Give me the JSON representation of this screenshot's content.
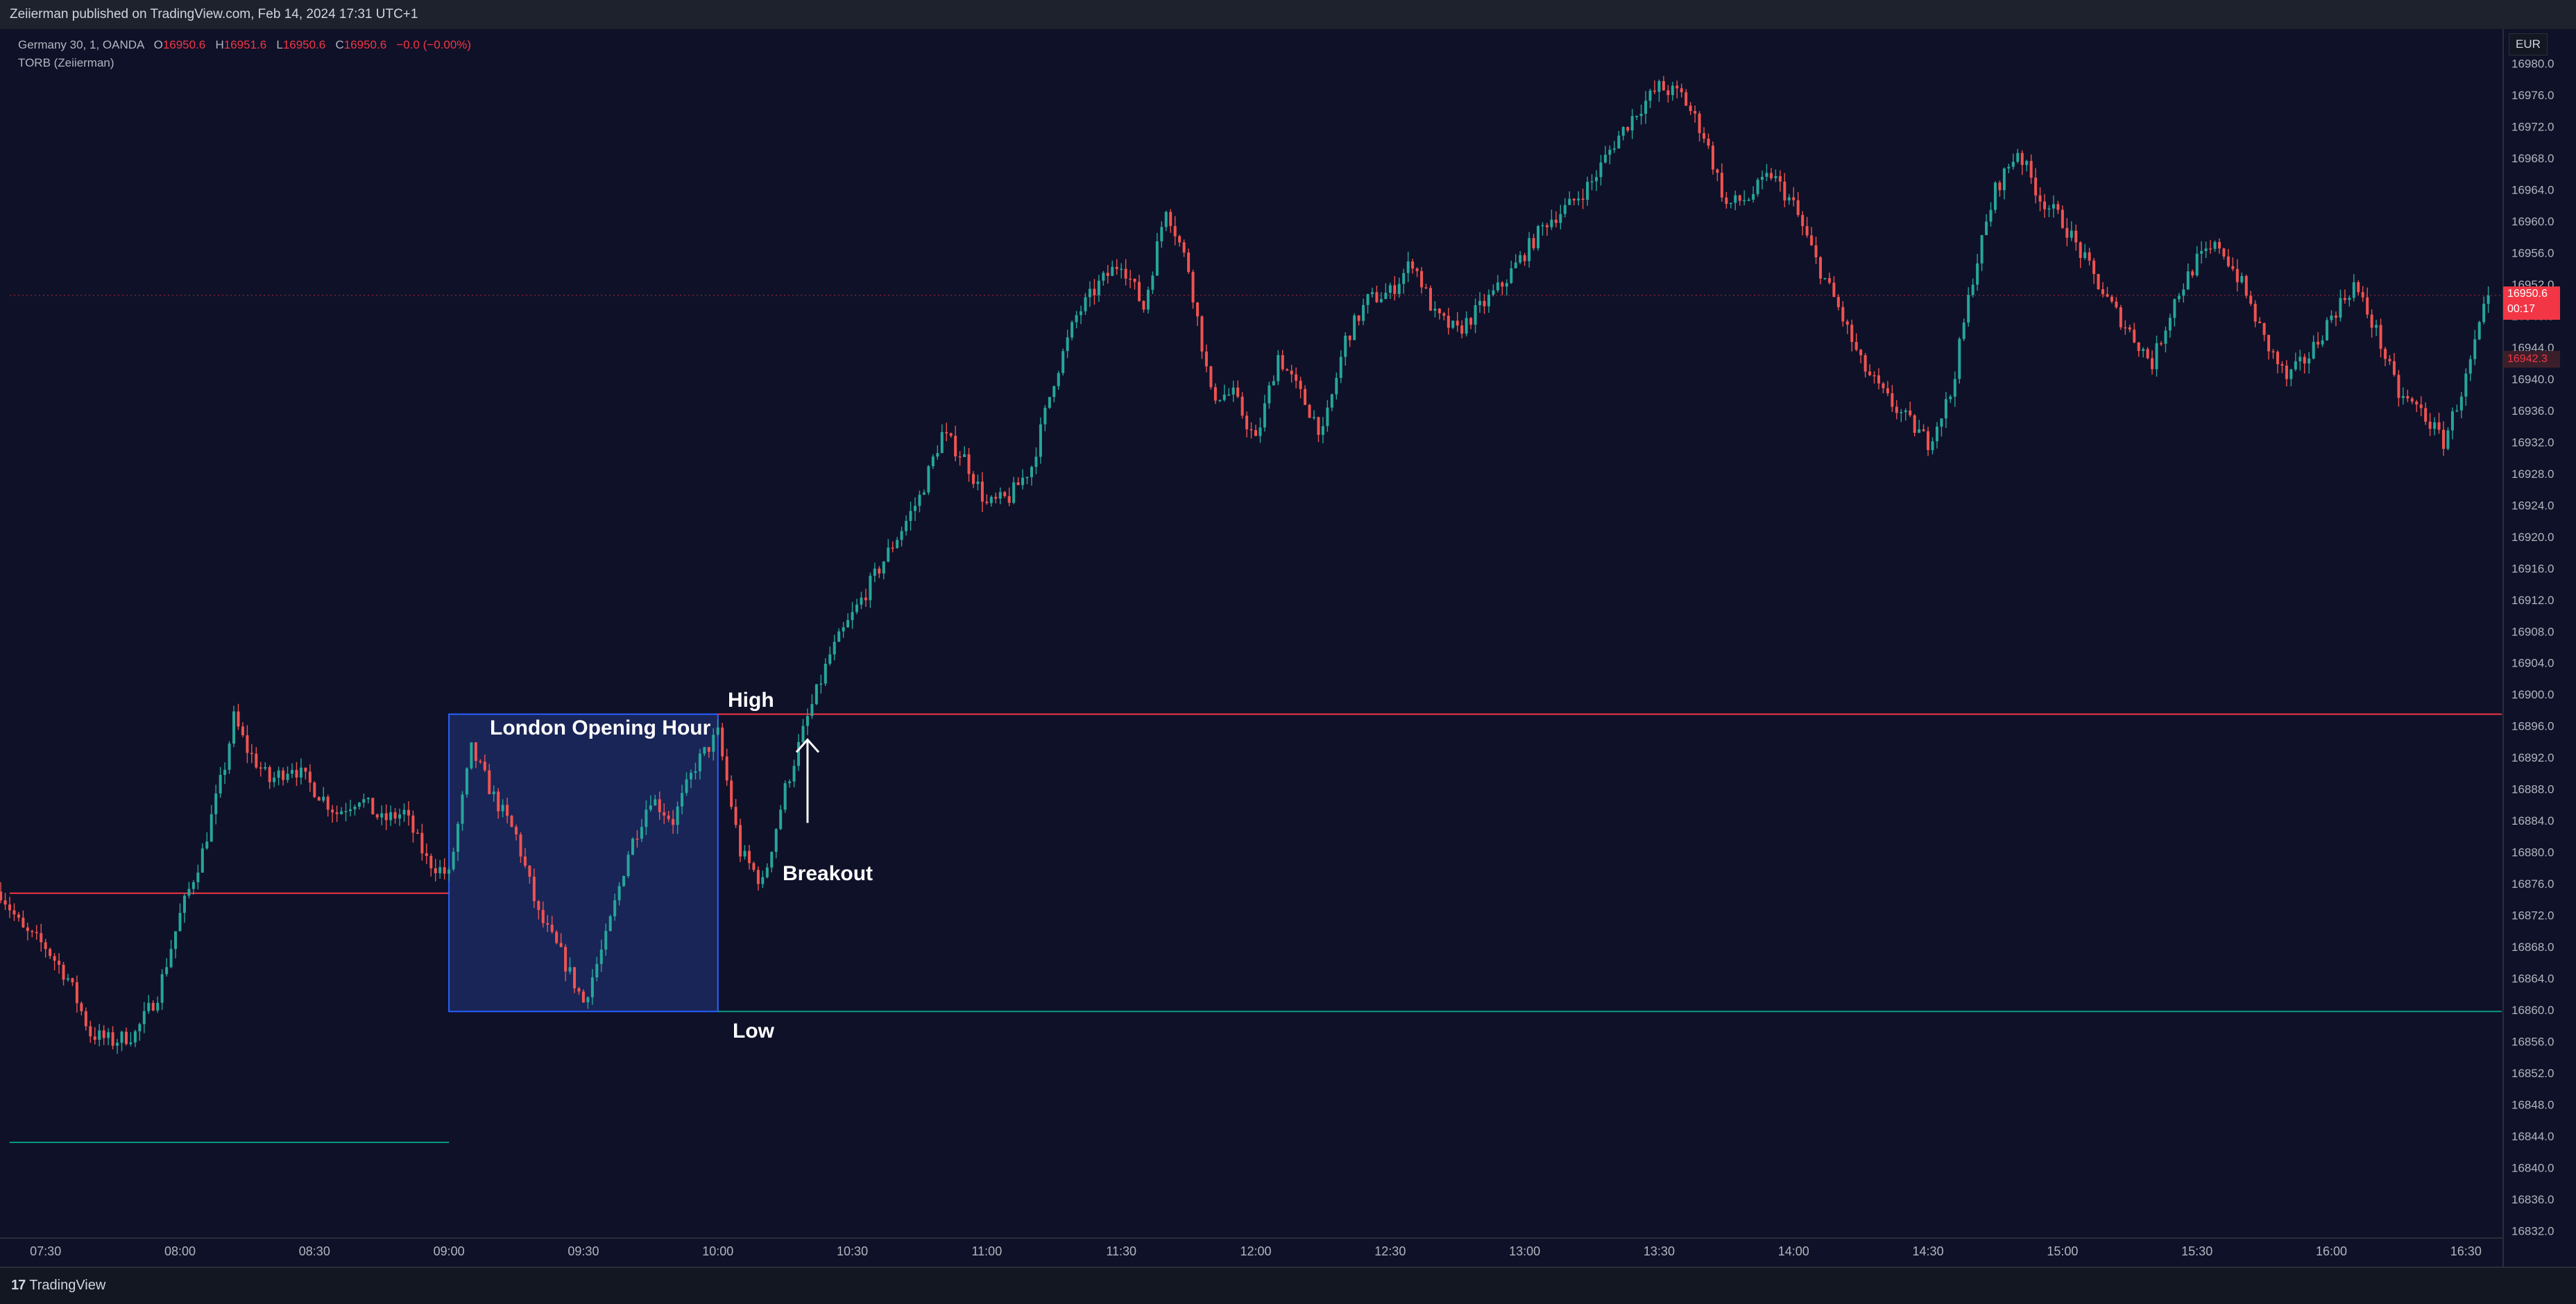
{
  "header": {
    "published": "Zeiierman published on TradingView.com, Feb 14, 2024 17:31 UTC+1"
  },
  "legend": {
    "symbol": "Germany 30, 1, OANDA",
    "o_label": "O",
    "o_val": "16950.6",
    "h_label": "H",
    "h_val": "16951.6",
    "l_label": "L",
    "l_val": "16950.6",
    "c_label": "C",
    "c_val": "16950.6",
    "change": "−0.0 (−0.00%)",
    "indicator": "TORB (Zeiierman)"
  },
  "currency": "EUR",
  "price_tag": {
    "price": "16950.6",
    "countdown": "00:17",
    "secondary": "16942.3"
  },
  "annotations": {
    "box_label": "London Opening Hour",
    "high": "High",
    "low": "Low",
    "breakout": "Breakout"
  },
  "footer": {
    "logo_text": "TradingView",
    "logo_mark": "17"
  },
  "colors": {
    "background": "#131722",
    "up": "#26a69a",
    "down": "#ef5350",
    "high_line": "#f23645",
    "low_line": "#089981",
    "box_fill": "#1c2a63",
    "box_border": "#2962ff"
  },
  "chart_data": {
    "type": "candlestick",
    "title": "",
    "xlabel": "",
    "ylabel": "",
    "x_ticks": [
      "07:30",
      "08:00",
      "08:30",
      "09:00",
      "09:30",
      "10:00",
      "10:30",
      "11:00",
      "11:30",
      "12:00",
      "12:30",
      "13:00",
      "13:30",
      "14:00",
      "14:30",
      "15:00",
      "15:30",
      "16:00",
      "16:30"
    ],
    "y_ticks": [
      "16980.0",
      "16976.0",
      "16972.0",
      "16968.0",
      "16964.0",
      "16960.0",
      "16956.0",
      "16952.0",
      "16948.0",
      "16944.0",
      "16940.0",
      "16936.0",
      "16932.0",
      "16928.0",
      "16924.0",
      "16920.0",
      "16916.0",
      "16912.0",
      "16908.0",
      "16904.0",
      "16900.0",
      "16896.0",
      "16892.0",
      "16888.0",
      "16884.0",
      "16880.0",
      "16876.0",
      "16872.0",
      "16868.0",
      "16864.0",
      "16860.0",
      "16856.0",
      "16852.0",
      "16848.0",
      "16844.0",
      "16840.0",
      "16836.0",
      "16832.0"
    ],
    "ylim": [
      16831.5,
      16980.5
    ],
    "x_range": [
      "07:22",
      "16:38"
    ],
    "opening_range": {
      "label": "London Opening Hour",
      "start": "09:00",
      "end": "10:00",
      "high": 16897.5,
      "low": 16859.8
    },
    "previous_range_lines": {
      "high": 16874.8,
      "low": 16843.2,
      "end": "09:00"
    },
    "breakout": {
      "time": "10:20",
      "price": 16896.2,
      "direction": "up"
    },
    "last_price": 16950.6,
    "series": [
      {
        "name": "price path (approx. close)",
        "points": [
          [
            "07:20",
            16875
          ],
          [
            "07:25",
            16870
          ],
          [
            "07:30",
            16868
          ],
          [
            "07:35",
            16864
          ],
          [
            "07:40",
            16857
          ],
          [
            "07:45",
            16856
          ],
          [
            "07:50",
            16857
          ],
          [
            "07:55",
            16862
          ],
          [
            "08:00",
            16872
          ],
          [
            "08:05",
            16880
          ],
          [
            "08:10",
            16891
          ],
          [
            "08:12",
            16897
          ],
          [
            "08:15",
            16893
          ],
          [
            "08:20",
            16889
          ],
          [
            "08:25",
            16891
          ],
          [
            "08:30",
            16888
          ],
          [
            "08:35",
            16885
          ],
          [
            "08:40",
            16887
          ],
          [
            "08:45",
            16884
          ],
          [
            "08:50",
            16885
          ],
          [
            "08:55",
            16879
          ],
          [
            "09:00",
            16877
          ],
          [
            "09:05",
            16893
          ],
          [
            "09:10",
            16887
          ],
          [
            "09:15",
            16882
          ],
          [
            "09:20",
            16872
          ],
          [
            "09:25",
            16867
          ],
          [
            "09:30",
            16861
          ],
          [
            "09:35",
            16869
          ],
          [
            "09:40",
            16880
          ],
          [
            "09:45",
            16887
          ],
          [
            "09:50",
            16884
          ],
          [
            "09:55",
            16891
          ],
          [
            "10:00",
            16895
          ],
          [
            "10:05",
            16880
          ],
          [
            "10:10",
            16876
          ],
          [
            "10:15",
            16888
          ],
          [
            "10:20",
            16897
          ],
          [
            "10:25",
            16905
          ],
          [
            "10:30",
            16910
          ],
          [
            "10:35",
            16915
          ],
          [
            "10:40",
            16920
          ],
          [
            "10:45",
            16925
          ],
          [
            "10:50",
            16933
          ],
          [
            "10:55",
            16930
          ],
          [
            "11:00",
            16924
          ],
          [
            "11:05",
            16925
          ],
          [
            "11:10",
            16929
          ],
          [
            "11:15",
            16940
          ],
          [
            "11:20",
            16948
          ],
          [
            "11:25",
            16952
          ],
          [
            "11:30",
            16955
          ],
          [
            "11:35",
            16949
          ],
          [
            "11:40",
            16962
          ],
          [
            "11:45",
            16954
          ],
          [
            "11:50",
            16938
          ],
          [
            "11:55",
            16938
          ],
          [
            "12:00",
            16932
          ],
          [
            "12:05",
            16943
          ],
          [
            "12:10",
            16938
          ],
          [
            "12:15",
            16933
          ],
          [
            "12:20",
            16945
          ],
          [
            "12:25",
            16950
          ],
          [
            "12:30",
            16951
          ],
          [
            "12:35",
            16955
          ],
          [
            "12:40",
            16948
          ],
          [
            "12:45",
            16946
          ],
          [
            "12:50",
            16949
          ],
          [
            "12:55",
            16952
          ],
          [
            "13:00",
            16956
          ],
          [
            "13:05",
            16960
          ],
          [
            "13:10",
            16962
          ],
          [
            "13:15",
            16965
          ],
          [
            "13:20",
            16970
          ],
          [
            "13:25",
            16974
          ],
          [
            "13:30",
            16977
          ],
          [
            "13:35",
            16976
          ],
          [
            "13:40",
            16971
          ],
          [
            "13:45",
            16962
          ],
          [
            "13:50",
            16963
          ],
          [
            "13:55",
            16966
          ],
          [
            "14:00",
            16962
          ],
          [
            "14:05",
            16955
          ],
          [
            "14:10",
            16949
          ],
          [
            "14:15",
            16942
          ],
          [
            "14:20",
            16938
          ],
          [
            "14:25",
            16935
          ],
          [
            "14:30",
            16932
          ],
          [
            "14:35",
            16938
          ],
          [
            "14:40",
            16953
          ],
          [
            "14:45",
            16964
          ],
          [
            "14:50",
            16969
          ],
          [
            "14:55",
            16963
          ],
          [
            "15:00",
            16960
          ],
          [
            "15:05",
            16955
          ],
          [
            "15:10",
            16950
          ],
          [
            "15:15",
            16946
          ],
          [
            "15:20",
            16942
          ],
          [
            "15:25",
            16950
          ],
          [
            "15:30",
            16955
          ],
          [
            "15:35",
            16957
          ],
          [
            "15:40",
            16952
          ],
          [
            "15:45",
            16945
          ],
          [
            "15:50",
            16940
          ],
          [
            "15:55",
            16943
          ],
          [
            "16:00",
            16948
          ],
          [
            "16:05",
            16952
          ],
          [
            "16:10",
            16946
          ],
          [
            "16:15",
            16938
          ],
          [
            "16:20",
            16936
          ],
          [
            "16:25",
            16932
          ],
          [
            "16:30",
            16940
          ],
          [
            "16:35",
            16950.6
          ]
        ]
      }
    ]
  }
}
